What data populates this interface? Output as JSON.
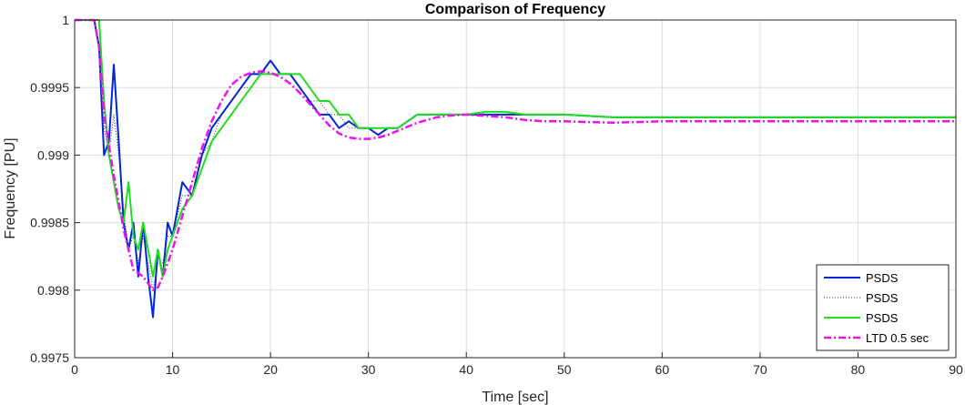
{
  "chart_data": {
    "type": "line",
    "title": "Comparison of Frequency",
    "xlabel": "Time [sec]",
    "ylabel": "Frequency [PU]",
    "xlim": [
      0,
      90
    ],
    "ylim": [
      0.9975,
      1.0
    ],
    "xticks": [
      0,
      10,
      20,
      30,
      40,
      50,
      60,
      70,
      80,
      90
    ],
    "xtick_labels": [
      "0",
      "10",
      "20",
      "30",
      "40",
      "50",
      "60",
      "70",
      "80",
      "90"
    ],
    "yticks": [
      0.9975,
      0.998,
      0.9985,
      0.999,
      0.9995,
      1.0
    ],
    "ytick_labels": [
      "0.9975",
      "0.998",
      "0.9985",
      "0.999",
      "0.9995",
      "1"
    ],
    "grid": true,
    "legend_position": "bottom-right",
    "colors": {
      "blue": "#0026d9",
      "black": "#333333",
      "green": "#22dd22",
      "magenta": "#ee11ee",
      "grid": "#dddddd"
    },
    "series": [
      {
        "name": "PSDS",
        "style": "solid",
        "color": "#0026d9",
        "x": [
          0,
          2,
          2.5,
          3,
          3.5,
          4,
          4.5,
          5,
          5.5,
          6,
          6.5,
          7,
          7.5,
          8,
          8.5,
          9,
          9.5,
          10,
          11,
          12,
          13,
          14,
          15,
          16,
          17,
          18,
          19,
          20,
          21,
          22,
          23,
          24,
          25,
          26,
          27,
          28,
          29,
          30,
          31,
          32,
          33,
          34,
          35,
          36,
          38,
          40,
          42,
          44,
          46,
          50,
          55,
          60,
          70,
          80,
          90
        ],
        "y": [
          1.0,
          1.0,
          0.9998,
          0.999,
          0.9991,
          0.99967,
          0.9991,
          0.9985,
          0.9983,
          0.9985,
          0.9981,
          0.9985,
          0.9981,
          0.9978,
          0.9983,
          0.9981,
          0.9985,
          0.9984,
          0.9988,
          0.9987,
          0.999,
          0.9992,
          0.9993,
          0.9994,
          0.9995,
          0.9996,
          0.9996,
          0.9997,
          0.9996,
          0.9996,
          0.9995,
          0.9994,
          0.9993,
          0.9993,
          0.9992,
          0.99925,
          0.9992,
          0.9992,
          0.99915,
          0.9992,
          0.9992,
          0.99925,
          0.9993,
          0.9993,
          0.9993,
          0.9993,
          0.9993,
          0.9993,
          0.9993,
          0.9993,
          0.99928,
          0.99928,
          0.99928,
          0.99928,
          0.99928
        ]
      },
      {
        "name": "PSDS",
        "style": "dotted",
        "color": "#333333",
        "x": [
          0,
          2,
          2.5,
          3,
          3.5,
          4,
          4.5,
          5,
          5.5,
          6,
          6.5,
          7,
          7.5,
          8,
          8.5,
          9,
          9.5,
          10,
          11,
          12,
          13,
          14,
          15,
          16,
          17,
          18,
          19,
          20,
          21,
          22,
          23,
          24,
          25,
          26,
          27,
          28,
          29,
          30,
          31,
          32,
          33,
          34,
          35,
          36,
          38,
          40,
          42,
          44,
          46,
          50,
          55,
          60,
          70,
          80,
          90
        ],
        "y": [
          1.0,
          1.0,
          0.9998,
          0.9992,
          0.999,
          0.9993,
          0.999,
          0.9986,
          0.9983,
          0.9984,
          0.9982,
          0.9984,
          0.9982,
          0.998,
          0.9982,
          0.9982,
          0.9984,
          0.9984,
          0.9987,
          0.9987,
          0.999,
          0.9991,
          0.9993,
          0.9994,
          0.9995,
          0.9995,
          0.9996,
          0.9996,
          0.9996,
          0.9996,
          0.9995,
          0.9994,
          0.9994,
          0.9993,
          0.9993,
          0.9992,
          0.9992,
          0.9992,
          0.9992,
          0.9992,
          0.9992,
          0.99925,
          0.9993,
          0.9993,
          0.9993,
          0.9993,
          0.9993,
          0.9993,
          0.9993,
          0.9993,
          0.99928,
          0.99928,
          0.99928,
          0.99928,
          0.99928
        ]
      },
      {
        "name": "PSDS",
        "style": "solid",
        "color": "#22dd22",
        "x": [
          0,
          2,
          2.5,
          3,
          3.5,
          4,
          4.5,
          5,
          5.5,
          6,
          6.5,
          7,
          7.5,
          8,
          8.5,
          9,
          9.5,
          10,
          11,
          12,
          13,
          14,
          15,
          16,
          17,
          18,
          19,
          20,
          21,
          22,
          23,
          24,
          25,
          26,
          27,
          28,
          29,
          30,
          31,
          32,
          33,
          34,
          35,
          36,
          38,
          40,
          42,
          44,
          46,
          50,
          55,
          60,
          70,
          80,
          90
        ],
        "y": [
          1.0,
          1.0,
          1.0,
          0.9994,
          0.999,
          0.9988,
          0.9986,
          0.9985,
          0.9988,
          0.9984,
          0.9983,
          0.9985,
          0.9983,
          0.9981,
          0.9983,
          0.9981,
          0.9983,
          0.9984,
          0.9986,
          0.9987,
          0.9989,
          0.9991,
          0.9992,
          0.9993,
          0.9994,
          0.9995,
          0.9996,
          0.9996,
          0.9996,
          0.9996,
          0.9996,
          0.9995,
          0.9994,
          0.9994,
          0.9993,
          0.9993,
          0.9992,
          0.9992,
          0.9992,
          0.9992,
          0.9992,
          0.99925,
          0.9993,
          0.9993,
          0.9993,
          0.9993,
          0.99932,
          0.99932,
          0.9993,
          0.9993,
          0.99928,
          0.99928,
          0.99928,
          0.99928,
          0.99928
        ]
      },
      {
        "name": "LTD 0.5 sec",
        "style": "dashdot",
        "color": "#ee11ee",
        "x": [
          0,
          2,
          2.5,
          3,
          4,
          5,
          6,
          7,
          7.5,
          8,
          8.5,
          9,
          10,
          11,
          12,
          13,
          14,
          15,
          16,
          17,
          18,
          19,
          20,
          21,
          22,
          23,
          24,
          25,
          26,
          27,
          28,
          29,
          30,
          31,
          32,
          33,
          34,
          35,
          36,
          37,
          38,
          40,
          42,
          44,
          46,
          48,
          50,
          55,
          60,
          65,
          70,
          80,
          90
        ],
        "y": [
          1.0,
          1.0,
          0.9998,
          0.9993,
          0.99885,
          0.99845,
          0.99815,
          0.9981,
          0.99805,
          0.998,
          0.99802,
          0.9981,
          0.9983,
          0.99855,
          0.9988,
          0.99905,
          0.99925,
          0.9994,
          0.99952,
          0.99958,
          0.99961,
          0.99962,
          0.99961,
          0.99958,
          0.99953,
          0.99946,
          0.99938,
          0.9993,
          0.99922,
          0.99916,
          0.99913,
          0.99912,
          0.99912,
          0.99913,
          0.99915,
          0.99918,
          0.99921,
          0.99924,
          0.99926,
          0.99928,
          0.99929,
          0.9993,
          0.99929,
          0.99928,
          0.99926,
          0.99925,
          0.99925,
          0.99924,
          0.99925,
          0.99925,
          0.99925,
          0.99925,
          0.99925
        ]
      }
    ]
  }
}
